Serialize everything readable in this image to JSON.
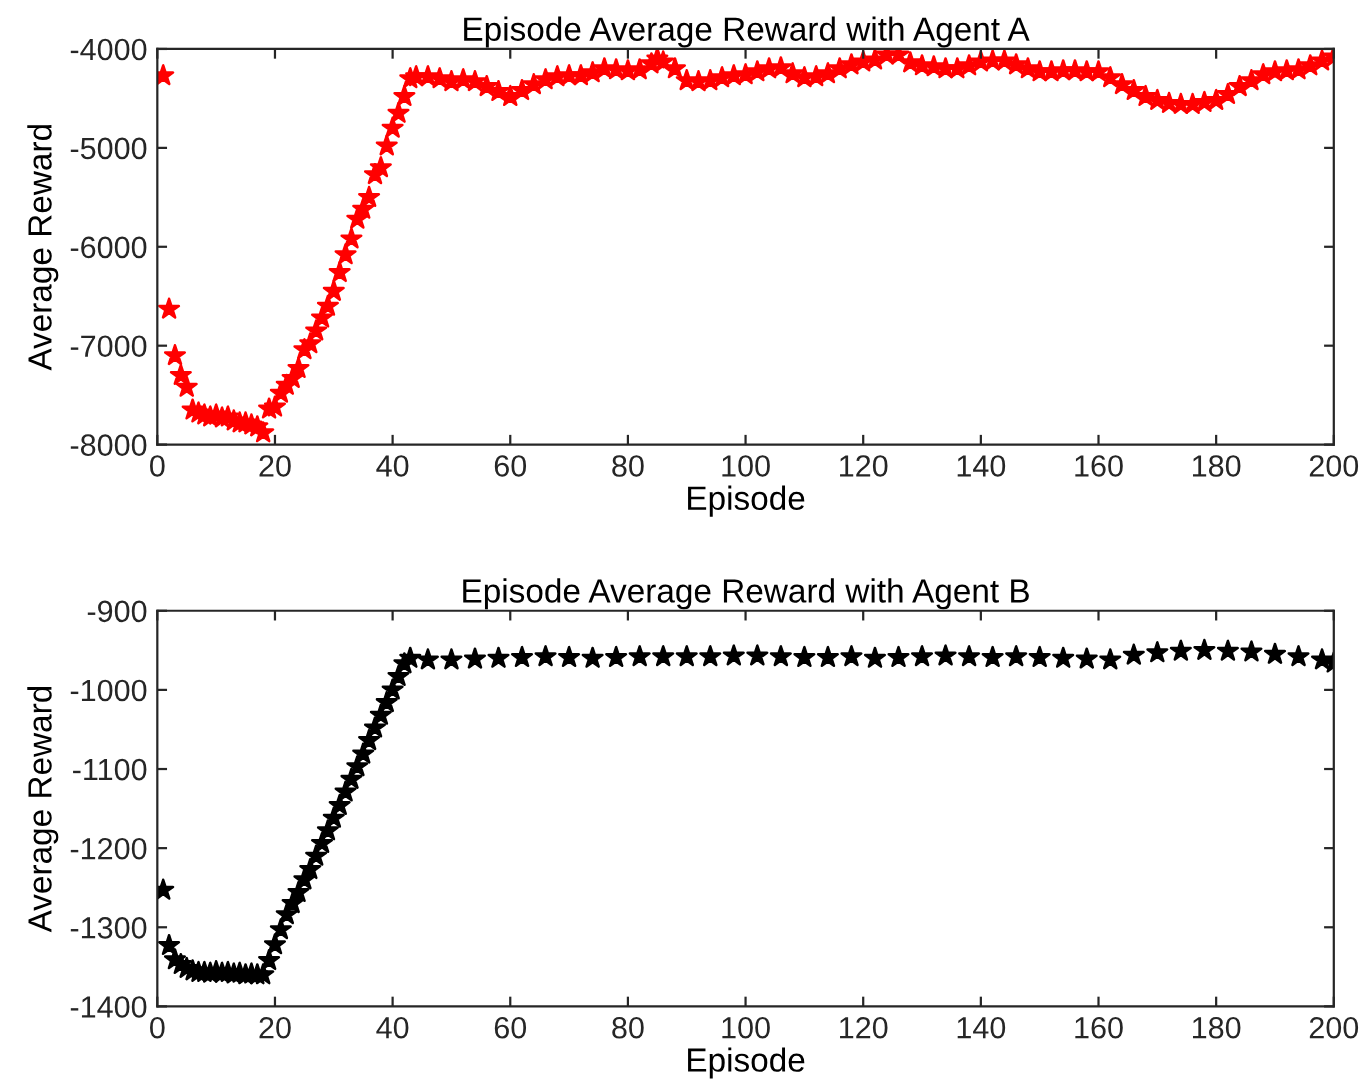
{
  "chart_data": [
    {
      "type": "scatter",
      "title": "Episode Average Reward with Agent A",
      "xlabel": "Episode",
      "ylabel": "Average Reward",
      "marker": "star",
      "grid": false,
      "legend": false,
      "xlim": [
        0,
        200
      ],
      "xticks": [
        0,
        20,
        40,
        60,
        80,
        100,
        120,
        140,
        160,
        180,
        200
      ],
      "ylim": [
        -8000,
        -4000
      ],
      "yticks": [
        -8000,
        -7000,
        -6000,
        -5000,
        -4000
      ],
      "series": [
        {
          "color": "#ff0000",
          "x": [
            1,
            2,
            3,
            4,
            5,
            6,
            7,
            8,
            9,
            10,
            11,
            12,
            13,
            14,
            15,
            16,
            17,
            18,
            19,
            20,
            21,
            22,
            23,
            24,
            25,
            26,
            27,
            28,
            29,
            30,
            31,
            32,
            33,
            34,
            35,
            36,
            37,
            38,
            39,
            40,
            41,
            42,
            43,
            44,
            46,
            48,
            50,
            52,
            54,
            56,
            58,
            60,
            62,
            64,
            66,
            68,
            70,
            72,
            74,
            76,
            78,
            80,
            82,
            84,
            85,
            86,
            88,
            90,
            92,
            94,
            96,
            98,
            100,
            102,
            104,
            106,
            108,
            110,
            112,
            114,
            116,
            118,
            120,
            122,
            124,
            126,
            128,
            130,
            132,
            134,
            136,
            138,
            140,
            142,
            144,
            146,
            148,
            150,
            152,
            154,
            156,
            158,
            160,
            162,
            164,
            166,
            168,
            170,
            172,
            174,
            176,
            178,
            180,
            182,
            184,
            186,
            188,
            190,
            192,
            194,
            196,
            198,
            200
          ],
          "values": [
            -4270,
            -6630,
            -7100,
            -7300,
            -7420,
            -7650,
            -7680,
            -7700,
            -7720,
            -7700,
            -7730,
            -7720,
            -7760,
            -7780,
            -7780,
            -7800,
            -7820,
            -7880,
            -7640,
            -7620,
            -7480,
            -7400,
            -7330,
            -7230,
            -7040,
            -6980,
            -6850,
            -6720,
            -6600,
            -6450,
            -6260,
            -6080,
            -5920,
            -5720,
            -5620,
            -5500,
            -5270,
            -5200,
            -4980,
            -4800,
            -4650,
            -4480,
            -4300,
            -4280,
            -4280,
            -4300,
            -4330,
            -4310,
            -4330,
            -4380,
            -4430,
            -4480,
            -4420,
            -4360,
            -4310,
            -4280,
            -4270,
            -4270,
            -4240,
            -4200,
            -4210,
            -4220,
            -4210,
            -4150,
            -4100,
            -4130,
            -4200,
            -4320,
            -4330,
            -4320,
            -4290,
            -4270,
            -4260,
            -4230,
            -4200,
            -4190,
            -4250,
            -4290,
            -4280,
            -4250,
            -4200,
            -4160,
            -4130,
            -4110,
            -4060,
            -4060,
            -4140,
            -4170,
            -4180,
            -4200,
            -4200,
            -4170,
            -4130,
            -4120,
            -4120,
            -4160,
            -4200,
            -4230,
            -4230,
            -4220,
            -4220,
            -4230,
            -4230,
            -4290,
            -4360,
            -4420,
            -4480,
            -4520,
            -4550,
            -4560,
            -4560,
            -4540,
            -4520,
            -4460,
            -4380,
            -4320,
            -4260,
            -4230,
            -4220,
            -4210,
            -4170,
            -4120,
            -4080
          ]
        }
      ]
    },
    {
      "type": "scatter",
      "title": "Episode Average Reward with Agent B",
      "xlabel": "Episode",
      "ylabel": "Average Reward",
      "marker": "star",
      "grid": false,
      "legend": false,
      "xlim": [
        0,
        200
      ],
      "xticks": [
        0,
        20,
        40,
        60,
        80,
        100,
        120,
        140,
        160,
        180,
        200
      ],
      "ylim": [
        -1400,
        -900
      ],
      "yticks": [
        -1400,
        -1300,
        -1200,
        -1100,
        -1000,
        -900
      ],
      "series": [
        {
          "color": "#000000",
          "x": [
            1,
            2,
            3,
            4,
            5,
            6,
            7,
            8,
            9,
            10,
            11,
            12,
            13,
            14,
            15,
            16,
            17,
            18,
            19,
            20,
            21,
            22,
            23,
            24,
            25,
            26,
            27,
            28,
            29,
            30,
            31,
            32,
            33,
            34,
            35,
            36,
            37,
            38,
            39,
            40,
            41,
            42,
            43,
            46,
            50,
            54,
            58,
            62,
            66,
            70,
            74,
            78,
            82,
            86,
            90,
            94,
            98,
            102,
            106,
            110,
            114,
            118,
            122,
            126,
            130,
            134,
            138,
            142,
            146,
            150,
            154,
            158,
            162,
            166,
            170,
            174,
            178,
            182,
            186,
            190,
            194,
            198,
            200
          ],
          "values": [
            -1253,
            -1323,
            -1341,
            -1347,
            -1352,
            -1355,
            -1357,
            -1357,
            -1358,
            -1356,
            -1358,
            -1357,
            -1359,
            -1358,
            -1360,
            -1359,
            -1360,
            -1360,
            -1342,
            -1322,
            -1303,
            -1284,
            -1270,
            -1256,
            -1240,
            -1227,
            -1210,
            -1194,
            -1178,
            -1162,
            -1146,
            -1129,
            -1113,
            -1097,
            -1081,
            -1064,
            -1048,
            -1032,
            -1016,
            -1000,
            -983,
            -967,
            -960,
            -962,
            -962,
            -961,
            -960,
            -959,
            -958,
            -959,
            -960,
            -959,
            -958,
            -958,
            -958,
            -958,
            -957,
            -957,
            -958,
            -959,
            -959,
            -958,
            -960,
            -959,
            -958,
            -957,
            -958,
            -959,
            -958,
            -959,
            -960,
            -961,
            -962,
            -956,
            -953,
            -951,
            -950,
            -951,
            -952,
            -955,
            -958,
            -962,
            -966
          ]
        }
      ]
    }
  ]
}
